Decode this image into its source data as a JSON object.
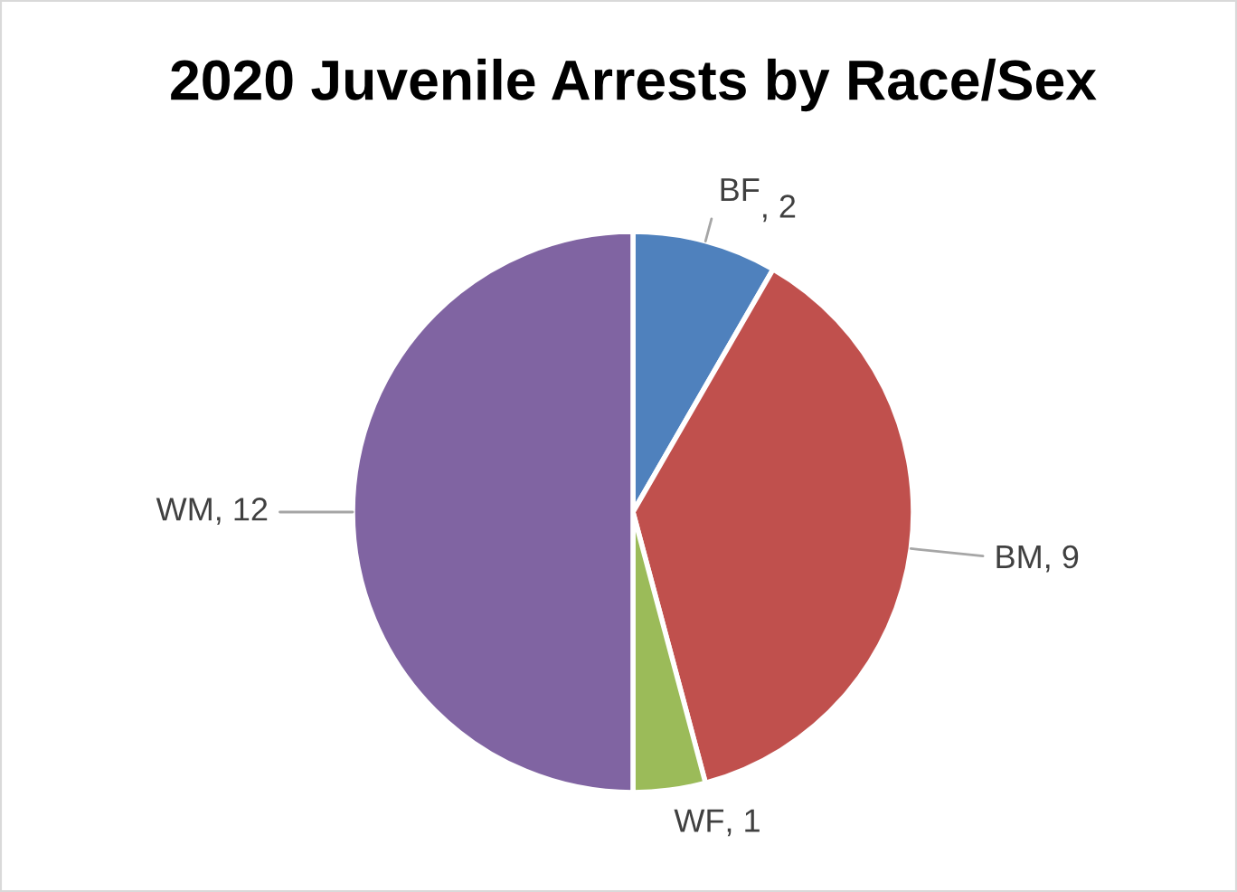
{
  "chart_data": {
    "type": "pie",
    "title": "2020 Juvenile Arrests by Race/Sex",
    "categories": [
      "BF",
      "BM",
      "WF",
      "WM"
    ],
    "values": [
      2,
      9,
      1,
      12
    ],
    "colors": [
      "#4f81bd",
      "#c0504d",
      "#9bbb59",
      "#8064a2"
    ],
    "value_labels": [
      ", 2",
      ", 9",
      ", 1",
      ", 12"
    ]
  }
}
